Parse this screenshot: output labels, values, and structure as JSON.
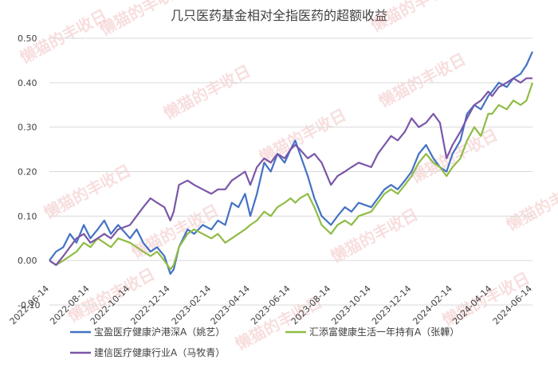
{
  "watermark": "懒猫的丰收日",
  "chart_data": {
    "type": "line",
    "title": "几只医药基金相对全指医药的超额收益",
    "xlabel": "",
    "ylabel": "",
    "ylim": [
      -0.1,
      0.5
    ],
    "yticks": [
      -0.1,
      0.0,
      0.1,
      0.2,
      0.3,
      0.4,
      0.5
    ],
    "ytick_labels": [
      "-0.10",
      "0.00",
      "0.10",
      "0.20",
      "0.30",
      "0.40",
      "0.50"
    ],
    "xlim": [
      "2022-06-14",
      "2024-06-14"
    ],
    "xtick_labels": [
      "2022-06-14",
      "2022-08-14",
      "2022-10-14",
      "2022-12-14",
      "2023-02-14",
      "2023-04-14",
      "2023-06-14",
      "2023-08-14",
      "2023-10-14",
      "2023-12-14",
      "2024-02-14",
      "2024-04-14",
      "2024-06-14"
    ],
    "grid": "horizontal",
    "legend_position": "bottom",
    "colors": [
      "#4472c4",
      "#8fbc45",
      "#7b56a8"
    ],
    "series": [
      {
        "name": "宝盈医疗健康沪港深A（姚艺）",
        "points": [
          [
            "2022-06-14",
            0.0
          ],
          [
            "2022-06-24",
            0.02
          ],
          [
            "2022-07-05",
            0.03
          ],
          [
            "2022-07-15",
            0.06
          ],
          [
            "2022-07-25",
            0.04
          ],
          [
            "2022-08-05",
            0.08
          ],
          [
            "2022-08-15",
            0.05
          ],
          [
            "2022-08-26",
            0.07
          ],
          [
            "2022-09-05",
            0.09
          ],
          [
            "2022-09-15",
            0.06
          ],
          [
            "2022-09-26",
            0.08
          ],
          [
            "2022-10-14",
            0.05
          ],
          [
            "2022-10-24",
            0.07
          ],
          [
            "2022-11-03",
            0.04
          ],
          [
            "2022-11-14",
            0.02
          ],
          [
            "2022-11-24",
            0.03
          ],
          [
            "2022-12-05",
            0.01
          ],
          [
            "2022-12-14",
            -0.03
          ],
          [
            "2022-12-19",
            -0.02
          ],
          [
            "2022-12-27",
            0.03
          ],
          [
            "2023-01-09",
            0.07
          ],
          [
            "2023-01-19",
            0.06
          ],
          [
            "2023-02-01",
            0.08
          ],
          [
            "2023-02-14",
            0.07
          ],
          [
            "2023-02-24",
            0.09
          ],
          [
            "2023-03-07",
            0.08
          ],
          [
            "2023-03-17",
            0.13
          ],
          [
            "2023-03-27",
            0.12
          ],
          [
            "2023-04-06",
            0.15
          ],
          [
            "2023-04-14",
            0.1
          ],
          [
            "2023-04-24",
            0.15
          ],
          [
            "2023-05-05",
            0.22
          ],
          [
            "2023-05-15",
            0.2
          ],
          [
            "2023-05-25",
            0.24
          ],
          [
            "2023-06-05",
            0.22
          ],
          [
            "2023-06-14",
            0.25
          ],
          [
            "2023-06-21",
            0.27
          ],
          [
            "2023-06-28",
            0.24
          ],
          [
            "2023-07-10",
            0.19
          ],
          [
            "2023-07-20",
            0.14
          ],
          [
            "2023-07-31",
            0.1
          ],
          [
            "2023-08-14",
            0.08
          ],
          [
            "2023-08-24",
            0.1
          ],
          [
            "2023-09-04",
            0.12
          ],
          [
            "2023-09-14",
            0.11
          ],
          [
            "2023-09-25",
            0.13
          ],
          [
            "2023-10-14",
            0.12
          ],
          [
            "2023-10-24",
            0.14
          ],
          [
            "2023-11-03",
            0.16
          ],
          [
            "2023-11-13",
            0.17
          ],
          [
            "2023-11-23",
            0.16
          ],
          [
            "2023-12-04",
            0.18
          ],
          [
            "2023-12-14",
            0.2
          ],
          [
            "2023-12-25",
            0.24
          ],
          [
            "2024-01-05",
            0.26
          ],
          [
            "2024-01-16",
            0.23
          ],
          [
            "2024-01-26",
            0.21
          ],
          [
            "2024-02-05",
            0.2
          ],
          [
            "2024-02-14",
            0.24
          ],
          [
            "2024-02-26",
            0.27
          ],
          [
            "2024-03-07",
            0.33
          ],
          [
            "2024-03-18",
            0.35
          ],
          [
            "2024-03-28",
            0.34
          ],
          [
            "2024-04-08",
            0.37
          ],
          [
            "2024-04-14",
            0.38
          ],
          [
            "2024-04-24",
            0.4
          ],
          [
            "2024-05-06",
            0.39
          ],
          [
            "2024-05-16",
            0.41
          ],
          [
            "2024-05-27",
            0.42
          ],
          [
            "2024-06-05",
            0.44
          ],
          [
            "2024-06-14",
            0.47
          ]
        ]
      },
      {
        "name": "汇添富健康生活一年持有A（张韡）",
        "points": [
          [
            "2022-06-14",
            0.0
          ],
          [
            "2022-06-24",
            -0.01
          ],
          [
            "2022-07-05",
            0.0
          ],
          [
            "2022-07-15",
            0.01
          ],
          [
            "2022-07-25",
            0.02
          ],
          [
            "2022-08-05",
            0.04
          ],
          [
            "2022-08-15",
            0.03
          ],
          [
            "2022-08-26",
            0.05
          ],
          [
            "2022-09-05",
            0.04
          ],
          [
            "2022-09-15",
            0.03
          ],
          [
            "2022-09-26",
            0.05
          ],
          [
            "2022-10-14",
            0.04
          ],
          [
            "2022-10-24",
            0.03
          ],
          [
            "2022-11-03",
            0.02
          ],
          [
            "2022-11-14",
            0.01
          ],
          [
            "2022-11-24",
            0.02
          ],
          [
            "2022-12-05",
            0.0
          ],
          [
            "2022-12-14",
            -0.02
          ],
          [
            "2022-12-19",
            -0.01
          ],
          [
            "2022-12-27",
            0.03
          ],
          [
            "2023-01-09",
            0.06
          ],
          [
            "2023-01-19",
            0.07
          ],
          [
            "2023-02-01",
            0.06
          ],
          [
            "2023-02-14",
            0.05
          ],
          [
            "2023-02-24",
            0.06
          ],
          [
            "2023-03-07",
            0.04
          ],
          [
            "2023-03-17",
            0.05
          ],
          [
            "2023-03-27",
            0.06
          ],
          [
            "2023-04-06",
            0.07
          ],
          [
            "2023-04-14",
            0.08
          ],
          [
            "2023-04-24",
            0.09
          ],
          [
            "2023-05-05",
            0.11
          ],
          [
            "2023-05-15",
            0.1
          ],
          [
            "2023-05-25",
            0.12
          ],
          [
            "2023-06-05",
            0.13
          ],
          [
            "2023-06-14",
            0.14
          ],
          [
            "2023-06-21",
            0.13
          ],
          [
            "2023-06-28",
            0.14
          ],
          [
            "2023-07-10",
            0.15
          ],
          [
            "2023-07-20",
            0.12
          ],
          [
            "2023-07-31",
            0.08
          ],
          [
            "2023-08-14",
            0.06
          ],
          [
            "2023-08-24",
            0.08
          ],
          [
            "2023-09-04",
            0.09
          ],
          [
            "2023-09-14",
            0.08
          ],
          [
            "2023-09-25",
            0.1
          ],
          [
            "2023-10-14",
            0.11
          ],
          [
            "2023-10-24",
            0.13
          ],
          [
            "2023-11-03",
            0.15
          ],
          [
            "2023-11-13",
            0.16
          ],
          [
            "2023-11-23",
            0.15
          ],
          [
            "2023-12-04",
            0.17
          ],
          [
            "2023-12-14",
            0.19
          ],
          [
            "2023-12-25",
            0.22
          ],
          [
            "2024-01-05",
            0.24
          ],
          [
            "2024-01-16",
            0.22
          ],
          [
            "2024-01-26",
            0.21
          ],
          [
            "2024-02-05",
            0.19
          ],
          [
            "2024-02-14",
            0.21
          ],
          [
            "2024-02-26",
            0.23
          ],
          [
            "2024-03-07",
            0.27
          ],
          [
            "2024-03-18",
            0.3
          ],
          [
            "2024-03-28",
            0.28
          ],
          [
            "2024-04-08",
            0.33
          ],
          [
            "2024-04-14",
            0.33
          ],
          [
            "2024-04-24",
            0.35
          ],
          [
            "2024-05-06",
            0.34
          ],
          [
            "2024-05-16",
            0.36
          ],
          [
            "2024-05-27",
            0.35
          ],
          [
            "2024-06-05",
            0.36
          ],
          [
            "2024-06-14",
            0.4
          ]
        ]
      },
      {
        "name": "建信医疗健康行业A（马牧青）",
        "points": [
          [
            "2022-06-14",
            0.0
          ],
          [
            "2022-06-24",
            -0.01
          ],
          [
            "2022-07-05",
            0.01
          ],
          [
            "2022-07-15",
            0.03
          ],
          [
            "2022-07-25",
            0.05
          ],
          [
            "2022-08-05",
            0.06
          ],
          [
            "2022-08-15",
            0.04
          ],
          [
            "2022-08-26",
            0.05
          ],
          [
            "2022-09-05",
            0.06
          ],
          [
            "2022-09-15",
            0.05
          ],
          [
            "2022-09-26",
            0.07
          ],
          [
            "2022-10-14",
            0.08
          ],
          [
            "2022-10-24",
            0.1
          ],
          [
            "2022-11-03",
            0.12
          ],
          [
            "2022-11-14",
            0.14
          ],
          [
            "2022-11-24",
            0.13
          ],
          [
            "2022-12-05",
            0.12
          ],
          [
            "2022-12-14",
            0.09
          ],
          [
            "2022-12-19",
            0.11
          ],
          [
            "2022-12-27",
            0.17
          ],
          [
            "2023-01-09",
            0.18
          ],
          [
            "2023-01-19",
            0.17
          ],
          [
            "2023-02-01",
            0.16
          ],
          [
            "2023-02-14",
            0.15
          ],
          [
            "2023-02-24",
            0.16
          ],
          [
            "2023-03-07",
            0.16
          ],
          [
            "2023-03-17",
            0.18
          ],
          [
            "2023-03-27",
            0.19
          ],
          [
            "2023-04-06",
            0.2
          ],
          [
            "2023-04-14",
            0.17
          ],
          [
            "2023-04-24",
            0.21
          ],
          [
            "2023-05-05",
            0.23
          ],
          [
            "2023-05-15",
            0.22
          ],
          [
            "2023-05-25",
            0.24
          ],
          [
            "2023-06-05",
            0.23
          ],
          [
            "2023-06-14",
            0.25
          ],
          [
            "2023-06-21",
            0.26
          ],
          [
            "2023-06-28",
            0.25
          ],
          [
            "2023-07-10",
            0.23
          ],
          [
            "2023-07-20",
            0.24
          ],
          [
            "2023-07-31",
            0.22
          ],
          [
            "2023-08-14",
            0.17
          ],
          [
            "2023-08-24",
            0.19
          ],
          [
            "2023-09-04",
            0.2
          ],
          [
            "2023-09-14",
            0.21
          ],
          [
            "2023-09-25",
            0.22
          ],
          [
            "2023-10-14",
            0.21
          ],
          [
            "2023-10-24",
            0.24
          ],
          [
            "2023-11-03",
            0.26
          ],
          [
            "2023-11-13",
            0.28
          ],
          [
            "2023-11-23",
            0.27
          ],
          [
            "2023-12-04",
            0.29
          ],
          [
            "2023-12-14",
            0.32
          ],
          [
            "2023-12-25",
            0.3
          ],
          [
            "2024-01-05",
            0.31
          ],
          [
            "2024-01-16",
            0.33
          ],
          [
            "2024-01-26",
            0.31
          ],
          [
            "2024-02-05",
            0.23
          ],
          [
            "2024-02-14",
            0.26
          ],
          [
            "2024-02-26",
            0.29
          ],
          [
            "2024-03-07",
            0.32
          ],
          [
            "2024-03-18",
            0.35
          ],
          [
            "2024-03-28",
            0.36
          ],
          [
            "2024-04-08",
            0.38
          ],
          [
            "2024-04-14",
            0.37
          ],
          [
            "2024-04-24",
            0.39
          ],
          [
            "2024-05-06",
            0.4
          ],
          [
            "2024-05-16",
            0.41
          ],
          [
            "2024-05-27",
            0.4
          ],
          [
            "2024-06-05",
            0.41
          ],
          [
            "2024-06-14",
            0.41
          ]
        ]
      }
    ]
  }
}
